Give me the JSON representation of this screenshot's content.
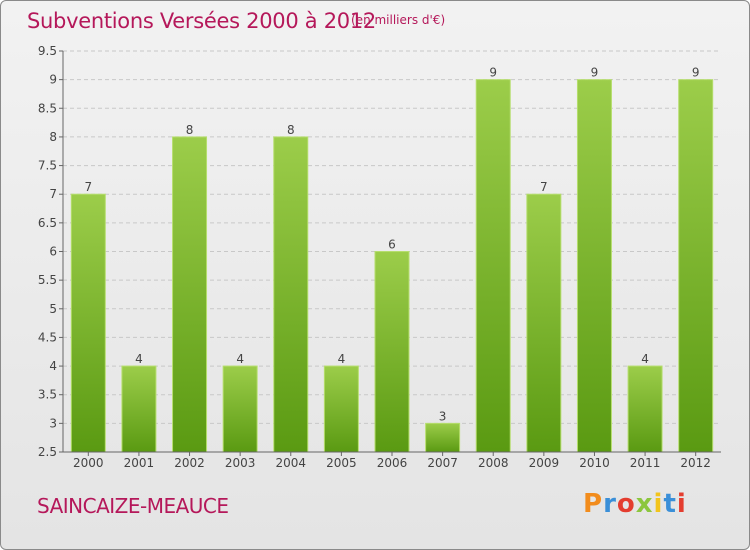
{
  "header": {
    "title": "Subventions Versées 2000 à 2012",
    "subtitle": "(en milliers d'€)"
  },
  "footer": {
    "commune": "SAINCAIZE-MEAUCE",
    "logo_text": "Proxiti",
    "logo_colors": [
      "#f28c1c",
      "#3a8fd8",
      "#e43d2f",
      "#8cc63e",
      "#f2c41c",
      "#3a8fd8",
      "#e43d2f"
    ]
  },
  "colors": {
    "accent": "#b5185a",
    "bar_top": "#9ccd4a",
    "bar_bottom": "#5a9a12"
  },
  "chart_data": {
    "type": "bar",
    "title": "Subventions Versées 2000 à 2012",
    "subtitle": "(en milliers d'€)",
    "xlabel": "",
    "ylabel": "",
    "categories": [
      "2000",
      "2001",
      "2002",
      "2003",
      "2004",
      "2005",
      "2006",
      "2007",
      "2008",
      "2009",
      "2010",
      "2011",
      "2012"
    ],
    "values": [
      7,
      4,
      8,
      4,
      8,
      4,
      6,
      3,
      9,
      7,
      9,
      4,
      9
    ],
    "ylim": [
      2.5,
      9.5
    ],
    "yticks": [
      "2.5",
      "3",
      "3.5",
      "4",
      "4.5",
      "5",
      "5.5",
      "6",
      "6.5",
      "7",
      "7.5",
      "8",
      "8.5",
      "9",
      "9.5"
    ],
    "grid": true,
    "data_labels": true
  }
}
